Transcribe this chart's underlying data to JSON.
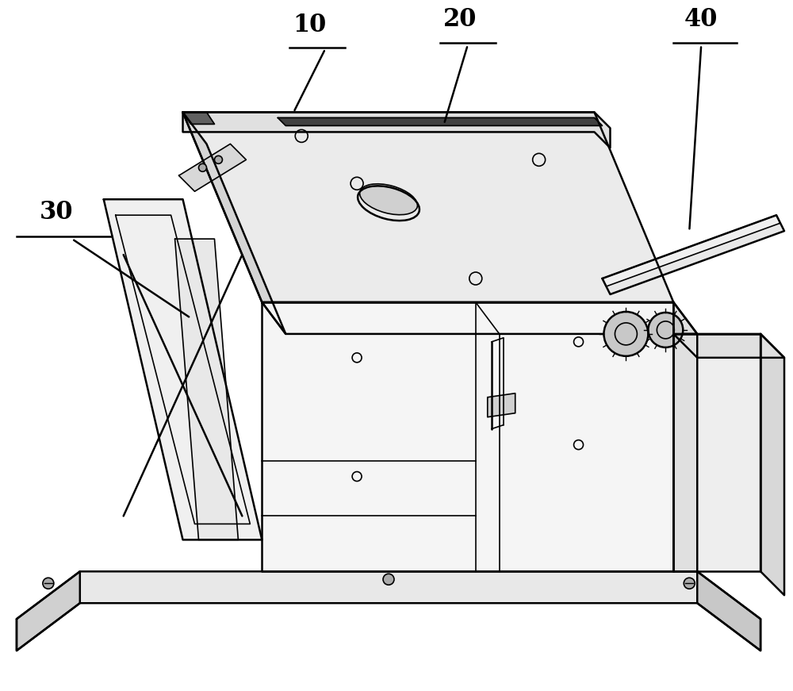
{
  "title": "",
  "background_color": "#ffffff",
  "line_color": "#000000",
  "line_width": 1.2,
  "label_10": "10",
  "label_20": "20",
  "label_30": "30",
  "label_40": "40",
  "label_fontsize": 22,
  "fig_width": 10.0,
  "fig_height": 8.71,
  "dpi": 100
}
